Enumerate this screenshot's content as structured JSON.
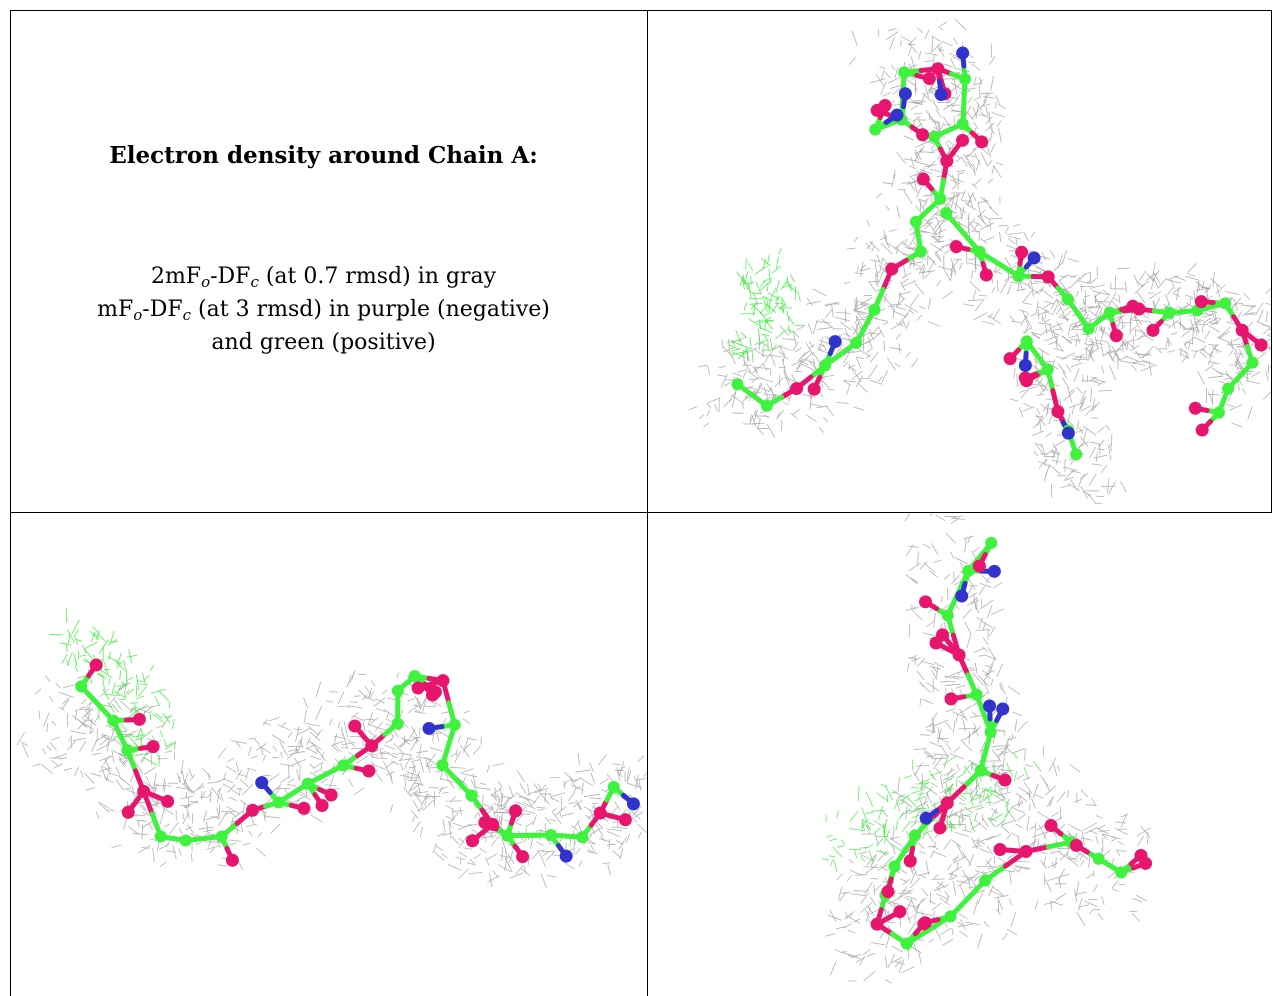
{
  "caption": {
    "title": "Electron density around Chain A:",
    "line1": {
      "pre": "2mF",
      "s1": "o",
      "mid": "-DF",
      "s2": "c",
      "post": " (at 0.7 rmsd) in gray"
    },
    "line2": {
      "pre": "mF",
      "s1": "o",
      "mid": "-DF",
      "s2": "c",
      "post": " (at 3 rmsd) in purple (negative)"
    },
    "line3": "and green (positive)"
  },
  "panels": [
    {
      "view": "top-right"
    },
    {
      "view": "bottom-left"
    },
    {
      "view": "bottom-right"
    }
  ],
  "colors": {
    "carbon": "#3ef23e",
    "oxygen": "#e8156e",
    "nitrogen": "#3232cc",
    "map_2fofc": "#a9a9a9",
    "map_fofc_positive": "#33ee33"
  }
}
